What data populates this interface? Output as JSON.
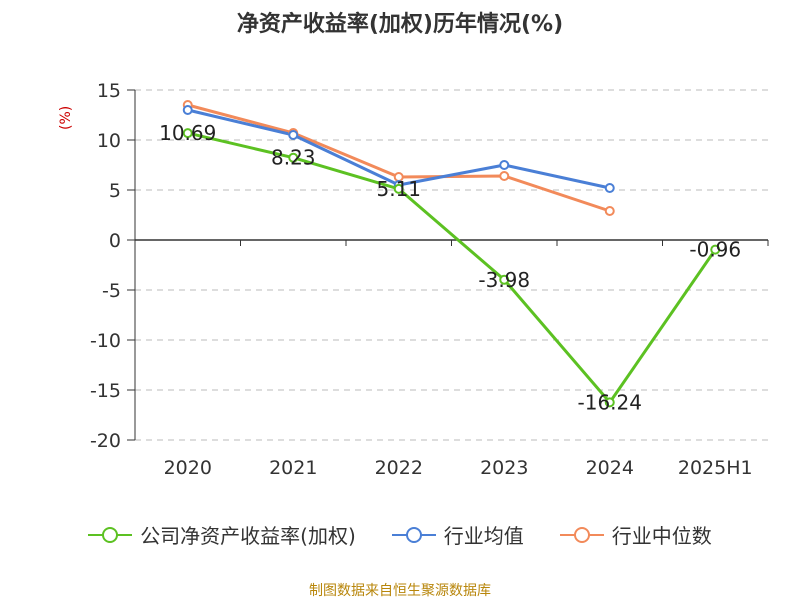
{
  "chart_data": {
    "type": "line",
    "title": "净资产收益率(加权)历年情况(%)",
    "ylabel": "(%)",
    "categories": [
      "2020",
      "2021",
      "2022",
      "2023",
      "2024",
      "2025H1"
    ],
    "ylim": [
      -20,
      15
    ],
    "yticks": [
      "15",
      "10",
      "5",
      "0",
      "-5",
      "-10",
      "-15",
      "-20"
    ],
    "ytick_values": [
      15,
      10,
      5,
      0,
      -5,
      -10,
      -15,
      -20
    ],
    "grid": true,
    "legend_position": "bottom",
    "series": [
      {
        "name": "公司净资产收益率(加权)",
        "color": "#5cc122",
        "values": [
          10.69,
          8.23,
          5.11,
          -3.98,
          -16.24,
          -0.96
        ],
        "labels": [
          "10.69",
          "8.23",
          "5.11",
          "-3.98",
          "-16.24",
          "-0.96"
        ]
      },
      {
        "name": "行业均值",
        "color": "#4a7fd6",
        "values": [
          13.0,
          10.5,
          5.5,
          7.5,
          5.2,
          null
        ]
      },
      {
        "name": "行业中位数",
        "color": "#f28a5a",
        "values": [
          13.5,
          10.7,
          6.3,
          6.4,
          2.9,
          null
        ]
      }
    ]
  },
  "source": "制图数据来自恒生聚源数据库"
}
